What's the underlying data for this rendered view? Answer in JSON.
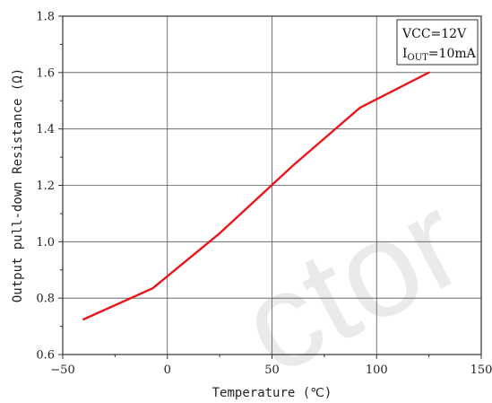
{
  "chart_data": {
    "type": "line",
    "title": "",
    "xlabel": "Temperature (℃)",
    "ylabel": "Output pull-down Resistance (Ω)",
    "xlim": [
      -50,
      150
    ],
    "ylim": [
      0.6,
      1.8
    ],
    "xticks": [
      -50,
      0,
      50,
      100,
      150
    ],
    "yticks": [
      0.6,
      0.8,
      1.0,
      1.2,
      1.4,
      1.6,
      1.8
    ],
    "xtick_labels": [
      "−50",
      "0",
      "50",
      "100",
      "150"
    ],
    "ytick_labels": [
      "0.6",
      "0.8",
      "1.0",
      "1.2",
      "1.4",
      "1.6",
      "1.8"
    ],
    "grid": true,
    "series": [
      {
        "color": "#e8161b",
        "x": [
          -40,
          -7,
          25,
          60,
          92,
          125
        ],
        "y": [
          0.725,
          0.835,
          1.03,
          1.27,
          1.475,
          1.6
        ]
      }
    ],
    "annotation": {
      "line1": "VCC=12V",
      "line2_prefix": "I",
      "line2_sub": "OUT",
      "line2_suffix": "=10mA",
      "placement": "top-right"
    },
    "watermark_text": "ctor"
  }
}
